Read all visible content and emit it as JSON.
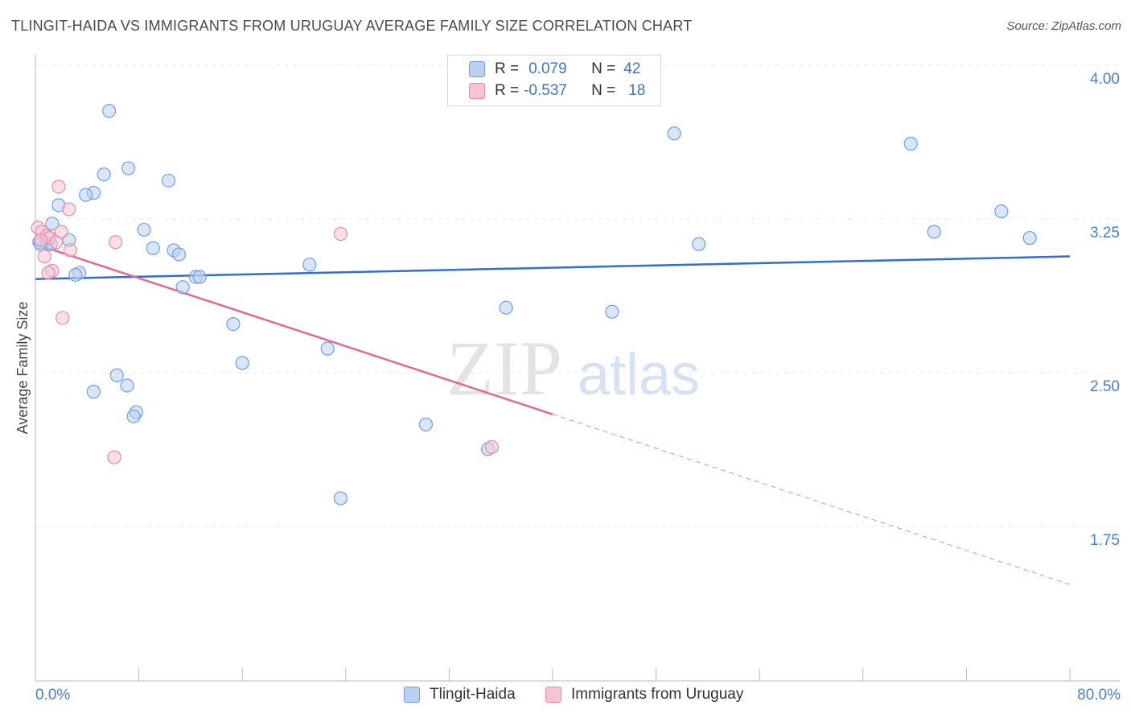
{
  "header": {
    "title": "TLINGIT-HAIDA VS IMMIGRANTS FROM URUGUAY AVERAGE FAMILY SIZE CORRELATION CHART",
    "source": "Source: ZipAtlas.com"
  },
  "watermark": {
    "zip": "ZIP",
    "atlas": "atlas"
  },
  "legend_top": {
    "rows": [
      {
        "r_key": "R =",
        "r_value": "0.079",
        "n_key": "N =",
        "n_value": "42"
      },
      {
        "r_key": "R =",
        "r_value": "-0.537",
        "n_key": "N =",
        "n_value": "18"
      }
    ]
  },
  "chart_data": {
    "type": "scatter",
    "ylabel": "Average Family Size",
    "xlim": [
      0,
      80
    ],
    "ylim": [
      1.0,
      4.15
    ],
    "x_tick_labels": [
      "0.0%",
      "80.0%"
    ],
    "y_ticks": [
      {
        "value": 4.0,
        "label": "4.00"
      },
      {
        "value": 3.25,
        "label": "3.25"
      },
      {
        "value": 2.5,
        "label": "2.50"
      },
      {
        "value": 1.75,
        "label": "1.75"
      }
    ],
    "grid": true,
    "legend_position": "bottom",
    "series": [
      {
        "name": "Tlingit-Haida",
        "color": "#6f9fe0",
        "fill": "#b9d0f2",
        "trend": {
          "x": [
            0,
            80
          ],
          "y": [
            3.02,
            3.13
          ]
        },
        "points": [
          [
            5.7,
            3.84
          ],
          [
            7.2,
            3.56
          ],
          [
            5.3,
            3.53
          ],
          [
            10.3,
            3.5
          ],
          [
            4.5,
            3.44
          ],
          [
            3.9,
            3.43
          ],
          [
            1.8,
            3.38
          ],
          [
            1.3,
            3.29
          ],
          [
            8.4,
            3.26
          ],
          [
            0.3,
            3.2
          ],
          [
            0.9,
            3.19
          ],
          [
            1.2,
            3.19
          ],
          [
            2.6,
            3.21
          ],
          [
            9.1,
            3.17
          ],
          [
            10.7,
            3.16
          ],
          [
            11.1,
            3.14
          ],
          [
            3.4,
            3.05
          ],
          [
            3.1,
            3.04
          ],
          [
            12.4,
            3.03
          ],
          [
            12.7,
            3.03
          ],
          [
            11.4,
            2.98
          ],
          [
            21.2,
            3.09
          ],
          [
            15.3,
            2.8
          ],
          [
            16.0,
            2.61
          ],
          [
            22.6,
            2.68
          ],
          [
            36.4,
            2.88
          ],
          [
            44.6,
            2.86
          ],
          [
            6.3,
            2.55
          ],
          [
            7.1,
            2.5
          ],
          [
            4.5,
            2.47
          ],
          [
            7.8,
            2.37
          ],
          [
            7.6,
            2.35
          ],
          [
            30.2,
            2.31
          ],
          [
            35.0,
            2.19
          ],
          [
            23.6,
            1.95
          ],
          [
            49.4,
            3.73
          ],
          [
            51.3,
            3.19
          ],
          [
            67.7,
            3.68
          ],
          [
            69.5,
            3.25
          ],
          [
            74.7,
            3.35
          ],
          [
            76.9,
            3.22
          ],
          [
            0.4,
            3.19
          ]
        ]
      },
      {
        "name": "Immigrants from Uruguay",
        "color": "#e68aa8",
        "fill": "#f7c4d4",
        "trend": {
          "x": [
            0,
            80
          ],
          "y": [
            3.19,
            1.53
          ]
        },
        "trend_solid_to_x": 40,
        "points": [
          [
            0.2,
            3.27
          ],
          [
            0.5,
            3.25
          ],
          [
            0.9,
            3.23
          ],
          [
            1.1,
            3.22
          ],
          [
            1.6,
            3.2
          ],
          [
            2.0,
            3.25
          ],
          [
            1.8,
            3.47
          ],
          [
            2.6,
            3.36
          ],
          [
            0.7,
            3.13
          ],
          [
            2.7,
            3.16
          ],
          [
            1.3,
            3.06
          ],
          [
            1.0,
            3.05
          ],
          [
            6.2,
            3.2
          ],
          [
            23.6,
            3.24
          ],
          [
            2.1,
            2.83
          ],
          [
            6.1,
            2.15
          ],
          [
            35.3,
            2.2
          ],
          [
            0.4,
            3.21
          ]
        ]
      }
    ]
  }
}
